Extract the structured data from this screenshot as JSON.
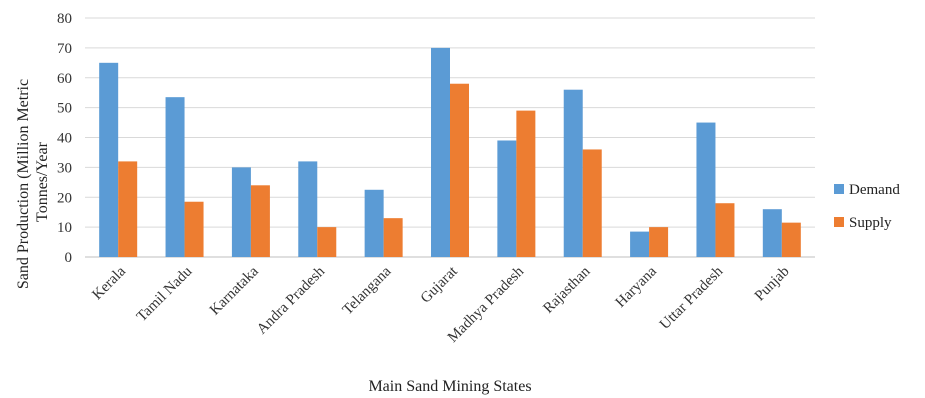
{
  "chart_data": {
    "type": "bar",
    "title": "",
    "xlabel": "Main Sand Mining States",
    "ylabel_line1": "Sand Production (Million Metric",
    "ylabel_line2": "Tonnes/Year",
    "ylim": [
      0,
      80
    ],
    "yticks": [
      0,
      10,
      20,
      30,
      40,
      50,
      60,
      70,
      80
    ],
    "grid": true,
    "legend_position": "right",
    "categories": [
      "Kerala",
      "Tamil Nadu",
      "Karnataka",
      "Andra Pradesh",
      "Telangana",
      "Gujarat",
      "Madhya Pradesh",
      "Rajasthan",
      "Haryana",
      "Uttar Pradesh",
      "Punjab"
    ],
    "series": [
      {
        "name": "Demand",
        "color": "#5b9bd5",
        "values": [
          65,
          53.5,
          30,
          32,
          22.5,
          70,
          39,
          56,
          8.5,
          45,
          16
        ]
      },
      {
        "name": "Supply",
        "color": "#ed7d31",
        "values": [
          32,
          18.5,
          24,
          10,
          13,
          58,
          49,
          36,
          10,
          18,
          11.5
        ]
      }
    ]
  }
}
